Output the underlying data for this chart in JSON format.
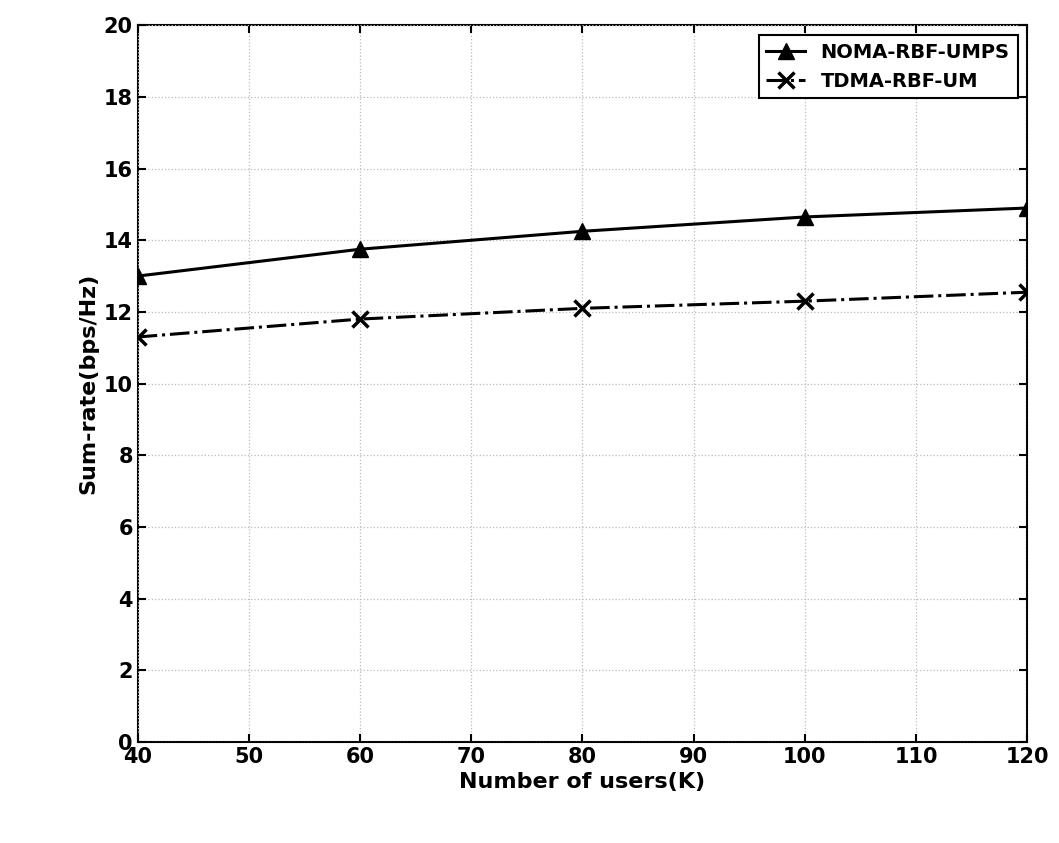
{
  "x": [
    40,
    60,
    80,
    100,
    120
  ],
  "noma_y": [
    13.0,
    13.75,
    14.25,
    14.65,
    14.9
  ],
  "tdma_y": [
    11.3,
    11.8,
    12.1,
    12.3,
    12.55
  ],
  "noma_label": "NOMA-RBF-UMPS",
  "tdma_label": "TDMA-RBF-UM",
  "xlabel": "Number of users(K)",
  "ylabel": "Sum-rate(bps/Hz)",
  "xlim": [
    40,
    120
  ],
  "ylim": [
    0,
    20
  ],
  "xticks": [
    40,
    50,
    60,
    70,
    80,
    90,
    100,
    110,
    120
  ],
  "yticks": [
    0,
    2,
    4,
    6,
    8,
    10,
    12,
    14,
    16,
    18,
    20
  ],
  "noma_color": "black",
  "tdma_color": "black",
  "bg_color": "white",
  "grid_color": "#bbbbbb",
  "legend_loc": "upper right",
  "label_fontsize": 16,
  "tick_fontsize": 15,
  "legend_fontsize": 14,
  "linewidth": 2.2,
  "marker_size": 11
}
